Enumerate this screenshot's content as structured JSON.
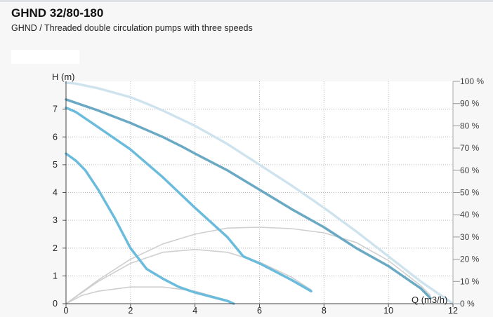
{
  "title": "GHND 32/80-180",
  "subtitle": "GHND / Threaded double circulation pumps with three speeds",
  "colors": {
    "curve_speed3": "#6aa9c4",
    "curve_speed2": "#6bbcdc",
    "curve_speed1": "#6bbcdc",
    "efficiency": "#cfcfcf",
    "envelope": "#cfe3ee",
    "grid": "#b8b8b8"
  },
  "chart_data": {
    "type": "line",
    "xlabel": "Q (m3/h)",
    "ylabel": "H (m)",
    "xlim": [
      0,
      12
    ],
    "ylim": [
      0,
      8
    ],
    "x_ticks": [
      "0",
      "2",
      "4",
      "6",
      "8",
      "10",
      "12"
    ],
    "y_ticks": [
      "0",
      "1",
      "2",
      "3",
      "4",
      "5",
      "6",
      "7"
    ],
    "right_axis_ticks": [
      "0 %",
      "10 %",
      "20 %",
      "30 %",
      "40 %",
      "50 %",
      "60 %",
      "70 %",
      "80 %",
      "90 %",
      "100 %"
    ],
    "grid": true,
    "series": [
      {
        "id": "head_max",
        "x": [
          0,
          0.3,
          1,
          2,
          2.5,
          3,
          4,
          5,
          6,
          7,
          8,
          9,
          10,
          11,
          12
        ],
        "y": [
          7.95,
          7.92,
          7.75,
          7.43,
          7.2,
          6.95,
          6.4,
          5.75,
          5.0,
          4.25,
          3.45,
          2.6,
          1.7,
          0.8,
          0.0
        ]
      },
      {
        "id": "head_speed3",
        "x": [
          0,
          1,
          2,
          2.5,
          3,
          3.6,
          4,
          5,
          6,
          6.5,
          7,
          8,
          9,
          10,
          11,
          11.3
        ],
        "y": [
          7.35,
          6.95,
          6.5,
          6.25,
          6.0,
          5.65,
          5.4,
          4.8,
          4.1,
          3.75,
          3.4,
          2.75,
          2.0,
          1.35,
          0.55,
          0.2
        ]
      },
      {
        "id": "head_speed2",
        "x": [
          0,
          0.3,
          1,
          2,
          3,
          4,
          5,
          5.5,
          6,
          7,
          7.6
        ],
        "y": [
          7.05,
          6.9,
          6.35,
          5.55,
          4.55,
          3.45,
          2.4,
          1.7,
          1.45,
          0.85,
          0.45
        ]
      },
      {
        "id": "head_speed1",
        "x": [
          0,
          0.3,
          0.6,
          1,
          1.5,
          2,
          2.5,
          3,
          3.5,
          4,
          4.5,
          5,
          5.2
        ],
        "y": [
          5.4,
          5.15,
          4.8,
          4.1,
          3.1,
          2.0,
          1.25,
          0.9,
          0.6,
          0.4,
          0.25,
          0.1,
          0.0
        ]
      },
      {
        "id": "eff_speed3",
        "x": [
          0,
          1,
          2,
          3,
          4,
          5,
          6,
          7,
          8,
          9,
          10,
          11,
          11.3
        ],
        "y": [
          0,
          0.85,
          1.6,
          2.15,
          2.5,
          2.72,
          2.75,
          2.7,
          2.55,
          2.2,
          1.55,
          0.65,
          0.3
        ]
      },
      {
        "id": "eff_speed2",
        "x": [
          0,
          1,
          2,
          3,
          4,
          5,
          6,
          7,
          7.6
        ],
        "y": [
          0,
          0.8,
          1.45,
          1.85,
          1.95,
          1.85,
          1.5,
          0.95,
          0.5
        ]
      },
      {
        "id": "eff_speed1",
        "x": [
          0,
          0.5,
          1,
          2,
          3,
          4,
          5,
          5.2
        ],
        "y": [
          0,
          0.3,
          0.45,
          0.6,
          0.6,
          0.45,
          0.12,
          0.02
        ]
      }
    ]
  }
}
